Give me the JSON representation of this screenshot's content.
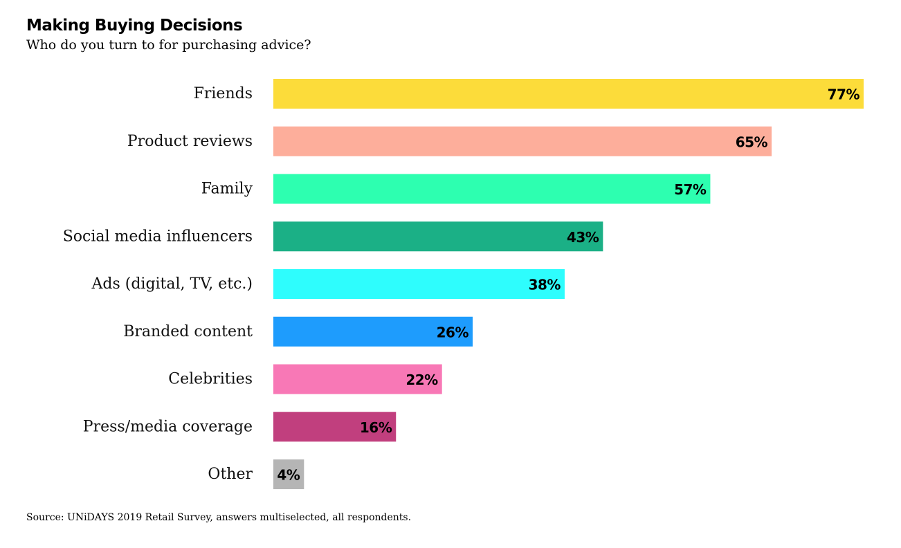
{
  "chart_data": {
    "type": "bar",
    "orientation": "horizontal",
    "title": "Making Buying Decisions",
    "subtitle": "Who do you turn to for purchasing advice?",
    "source": "Source: UNiDAYS 2019 Retail Survey, answers multiselected, all respondents.",
    "categories": [
      "Friends",
      "Product reviews",
      "Family",
      "Social media influencers",
      "Ads (digital, TV, etc.)",
      "Branded content",
      "Celebrities",
      "Press/media coverage",
      "Other"
    ],
    "values": [
      77,
      65,
      57,
      43,
      38,
      26,
      22,
      16,
      4
    ],
    "value_labels": [
      "77%",
      "65%",
      "57%",
      "43%",
      "38%",
      "26%",
      "22%",
      "16%",
      "4%"
    ],
    "colors": [
      "#fcdc3a",
      "#fdae9b",
      "#2dffb0",
      "#1bb086",
      "#2efdfd",
      "#1e9cfd",
      "#f878b6",
      "#c13f7e",
      "#b5b5b5"
    ],
    "unit": "%",
    "xlim": [
      0,
      77
    ],
    "grid": false,
    "legend": "none"
  }
}
